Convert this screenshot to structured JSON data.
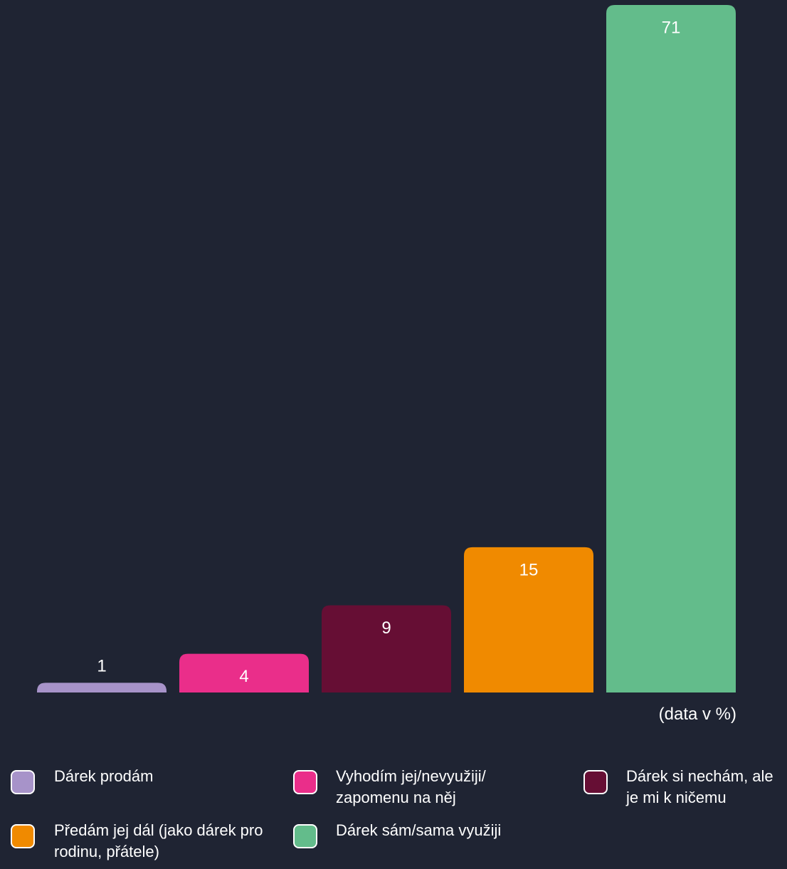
{
  "chart_data": {
    "type": "bar",
    "note": "(data v %)",
    "ylim": [
      0,
      71
    ],
    "series": [
      {
        "name": "Dárek prodám",
        "color": "#a793c9",
        "values": [
          1
        ]
      },
      {
        "name": "Vyhodím jej/nevyužiji/ zapomenu na něj",
        "color": "#ea2e8a",
        "values": [
          4
        ]
      },
      {
        "name": "Dárek si nechám, ale je mi k ničemu",
        "color": "#660e34",
        "values": [
          9
        ]
      },
      {
        "name": "Předám jej dál (jako dárek pro rodinu, přátele)",
        "color": "#f08a00",
        "values": [
          15
        ]
      },
      {
        "name": "Dárek sám/sama využiji",
        "color": "#63bc8b",
        "values": [
          71
        ]
      }
    ]
  }
}
